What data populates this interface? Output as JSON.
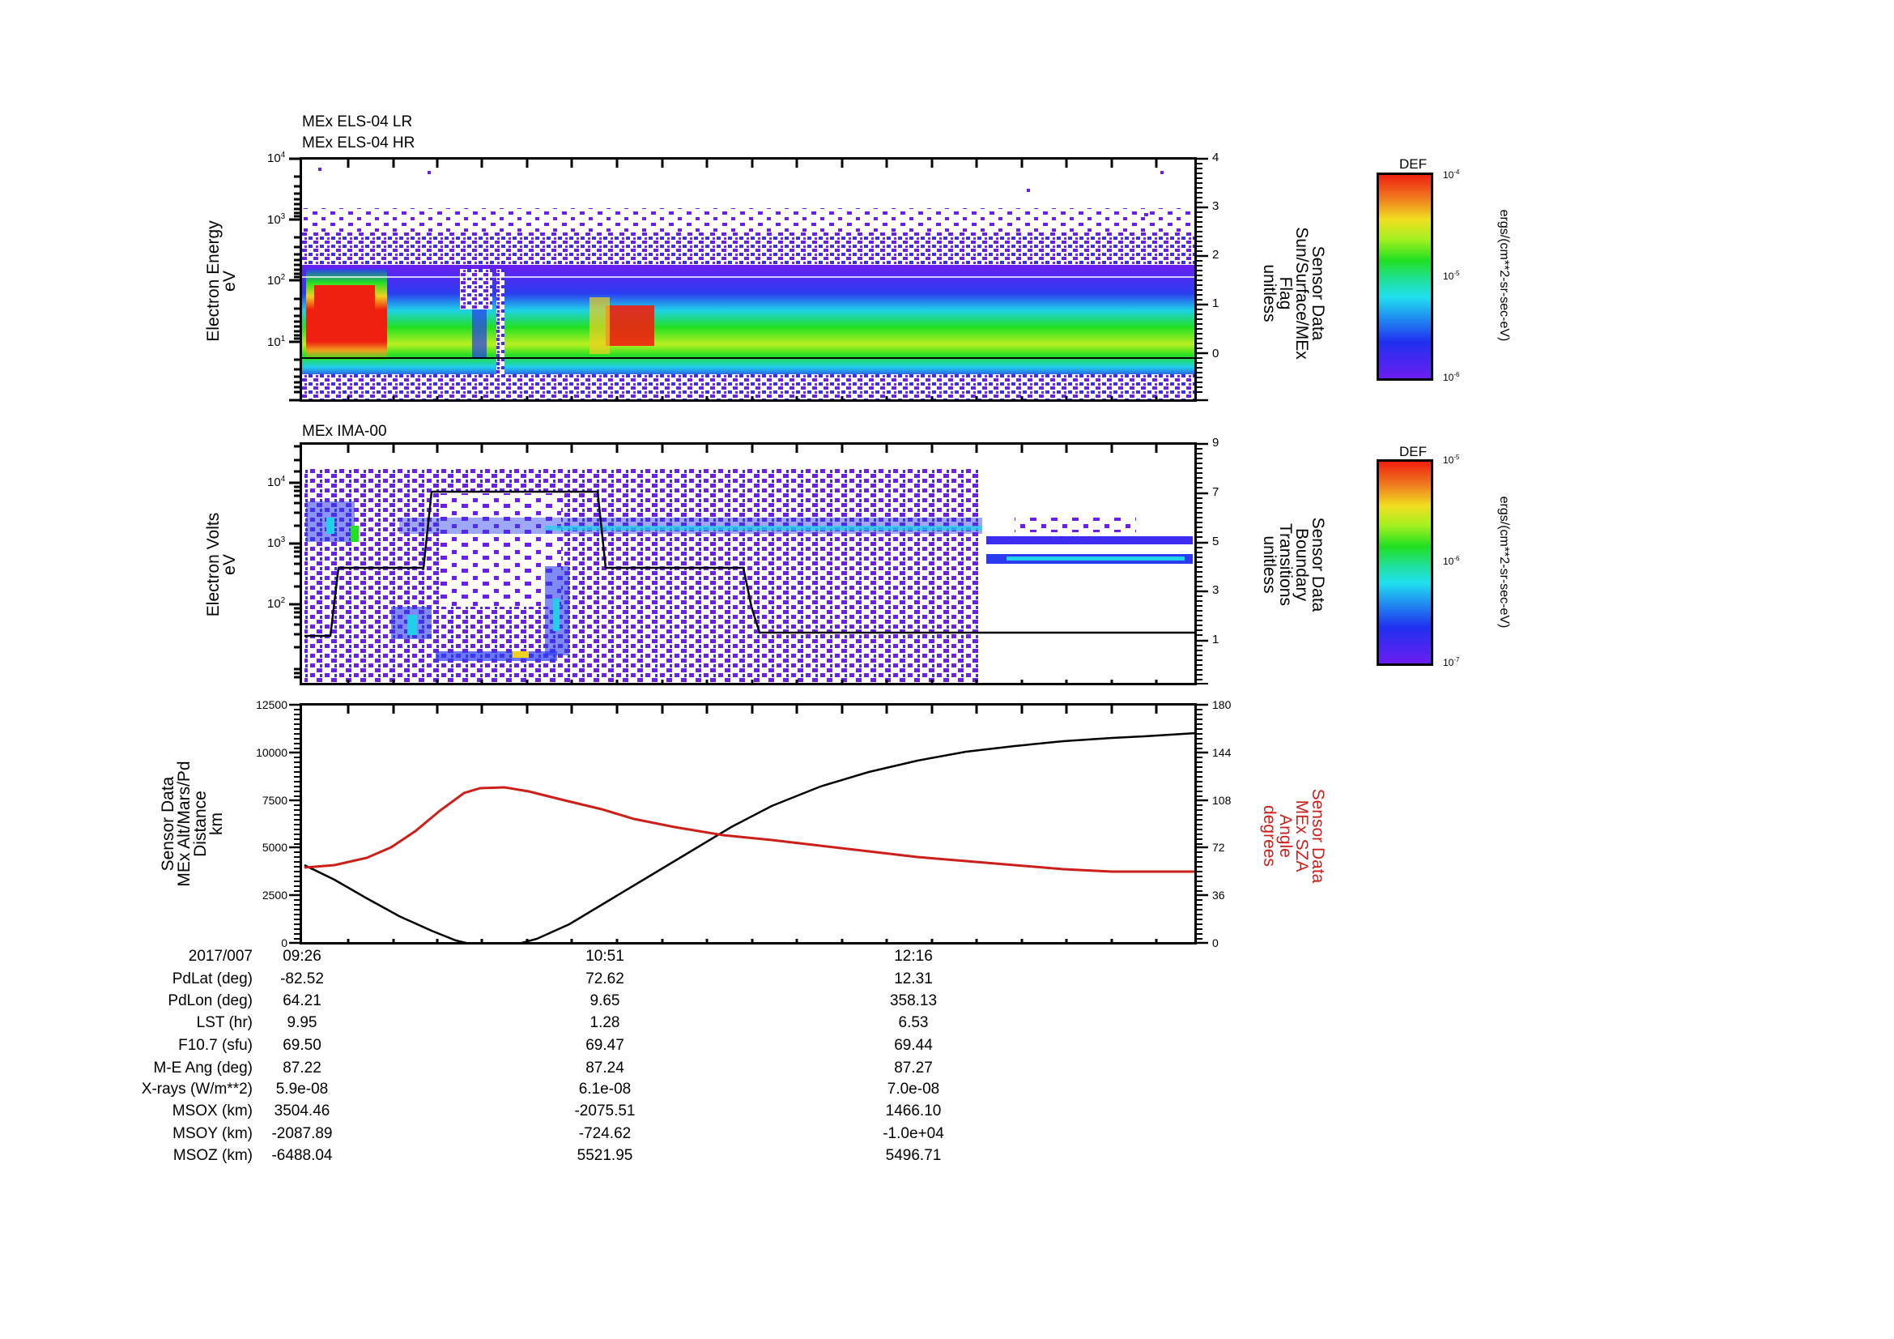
{
  "panels": {
    "p1": {
      "titles": [
        "MEx ELS-04 LR",
        "MEx ELS-04 HR"
      ],
      "ylabel": [
        "Electron Energy",
        "eV"
      ],
      "yticks": [
        "10^4",
        "10^3",
        "10^2",
        "10^1"
      ],
      "y2label": [
        "Sensor Data",
        "Sun/Surface/MEx",
        "Flag",
        "unitless"
      ],
      "y2ticks": [
        "4",
        "3",
        "2",
        "1",
        "0"
      ],
      "colorbar": {
        "title": "DEF",
        "top": "10^-4",
        "mid": "10^-5",
        "bottom": "10^-6",
        "unit": "ergs/(cm**2-sr-sec-eV)"
      }
    },
    "p2": {
      "titles": [
        "MEx IMA-00"
      ],
      "ylabel": [
        "Electron Volts",
        "eV"
      ],
      "yticks": [
        "10^4",
        "10^3",
        "10^2"
      ],
      "y2label": [
        "Sensor Data",
        "Boundary",
        "Transitions",
        "unitless"
      ],
      "y2ticks": [
        "9",
        "7",
        "5",
        "3",
        "1"
      ],
      "colorbar": {
        "title": "DEF",
        "top": "10^-5",
        "mid": "10^-6",
        "bottom": "10^-7",
        "unit": "ergs/(cm**2-sr-sec-eV)"
      }
    },
    "p3": {
      "ylabel": [
        "Sensor Data",
        "MEx Alt/Mars/Pd",
        "Distance",
        "km"
      ],
      "yticks": [
        "12500",
        "10000",
        "7500",
        "5000",
        "2500",
        "0"
      ],
      "y2label": [
        "Sensor Data",
        "MEx SZA",
        "Angle",
        "degrees"
      ],
      "y2ticks": [
        "180",
        "144",
        "108",
        "72",
        "36",
        "0"
      ],
      "colors": {
        "altitude": "#000000",
        "sza": "#cc1f1a"
      }
    }
  },
  "ephemeris": {
    "rows": [
      {
        "label": "2017/007",
        "values": [
          "09:26",
          "10:51",
          "12:16"
        ]
      },
      {
        "label": "PdLat (deg)",
        "values": [
          "-82.52",
          "72.62",
          "12.31"
        ]
      },
      {
        "label": "PdLon (deg)",
        "values": [
          "64.21",
          "9.65",
          "358.13"
        ]
      },
      {
        "label": "LST (hr)",
        "values": [
          "9.95",
          "1.28",
          "6.53"
        ]
      },
      {
        "label": "F10.7 (sfu)",
        "values": [
          "69.50",
          "69.47",
          "69.44"
        ]
      },
      {
        "label": "M-E Ang (deg)",
        "values": [
          "87.22",
          "87.24",
          "87.27"
        ]
      },
      {
        "label": "X-rays (W/m**2)",
        "values": [
          "5.9e-08",
          "6.1e-08",
          "7.0e-08"
        ]
      },
      {
        "label": "MSOX (km)",
        "values": [
          "3504.46",
          "-2075.51",
          "1466.10"
        ]
      },
      {
        "label": "MSOY (km)",
        "values": [
          "-2087.89",
          "-724.62",
          "-1.0e+04"
        ]
      },
      {
        "label": "MSOZ (km)",
        "values": [
          "-6488.04",
          "5521.95",
          "5496.71"
        ]
      }
    ]
  },
  "chart_data": [
    {
      "type": "heatmap",
      "title": "MEx ELS-04 LR / MEx ELS-04 HR",
      "xlabel": "Time (2017/007)",
      "ylabel": "Electron Energy (eV)",
      "yscale": "log",
      "ylim": [
        1.5,
        10000
      ],
      "x_ticks": [
        "09:26",
        "10:51",
        "12:16"
      ],
      "colorbar": {
        "label": "DEF ergs/(cm**2-sr-sec-eV)",
        "range": [
          1e-06,
          0.0001
        ],
        "scale": "log"
      },
      "features": [
        {
          "time_range": [
            "09:26",
            "09:43"
          ],
          "energy_range_eV": [
            10,
            60
          ],
          "intensity": "high (red, ~1e-4)"
        },
        {
          "time_range": [
            "10:25",
            "10:45"
          ],
          "energy_range_eV": [
            12,
            40
          ],
          "intensity": "high (red-orange)"
        },
        {
          "time_range": [
            "10:45",
            "13:40"
          ],
          "energy_range_eV": [
            5,
            40
          ],
          "intensity": "moderate (green, ~1e-5)"
        }
      ],
      "overlay": {
        "name": "Sun/Surface/MEx Flag",
        "y2_range": [
          -0.9,
          4
        ],
        "value": 0
      }
    },
    {
      "type": "heatmap",
      "title": "MEx IMA-00",
      "xlabel": "Time (2017/007)",
      "ylabel": "Electron Volts (eV)",
      "yscale": "log",
      "ylim": [
        10,
        40000
      ],
      "x_ticks": [
        "09:26",
        "10:51",
        "12:16"
      ],
      "colorbar": {
        "label": "DEF ergs/(cm**2-sr-sec-eV)",
        "range": [
          1e-07,
          1e-05
        ],
        "scale": "log"
      },
      "features": [
        {
          "time_range": [
            "09:26",
            "12:55"
          ],
          "energy_range_eV": [
            10,
            15000
          ],
          "intensity": "low, sparse (violet/blue)"
        },
        {
          "time_range": [
            "12:55",
            "13:40"
          ],
          "energy_range_eV": [
            500,
            800
          ],
          "intensity": "band (blue/cyan ~1e-6)"
        }
      ],
      "overlay": {
        "name": "Boundary Transitions",
        "y2_range": [
          -0.9,
          9
        ],
        "x": [
          "09:26",
          "09:31",
          "09:35",
          "09:52",
          "09:57",
          "10:49",
          "10:52",
          "11:24",
          "11:30",
          "13:40"
        ],
        "y": [
          1,
          1,
          4.5,
          4.5,
          7.2,
          7.2,
          4.5,
          4.5,
          1,
          1
        ]
      }
    },
    {
      "type": "line",
      "title": "",
      "xlabel": "Time (2017/007)",
      "ylabel": "MEx Alt/Mars/Pd Distance (km)",
      "y2label": "MEx SZA Angle (degrees)",
      "ylim": [
        0,
        12500
      ],
      "y2lim": [
        0,
        180
      ],
      "x": [
        "09:26",
        "09:45",
        "10:05",
        "10:15",
        "10:30",
        "10:51",
        "11:15",
        "11:35",
        "12:00",
        "12:16",
        "12:45",
        "13:15",
        "13:40"
      ],
      "series": [
        {
          "name": "MEx Altitude (km)",
          "axis": "left",
          "color": "#000000",
          "values": [
            4200,
            2400,
            700,
            300,
            800,
            2700,
            4800,
            6300,
            7800,
            8500,
            9300,
            10000,
            10500
          ]
        },
        {
          "name": "MEx SZA (deg)",
          "axis": "right",
          "color": "#cc1f1a",
          "values": [
            63,
            68,
            86,
            111,
            117,
            110,
            100,
            91,
            86,
            84,
            79,
            75,
            72
          ]
        }
      ]
    }
  ]
}
